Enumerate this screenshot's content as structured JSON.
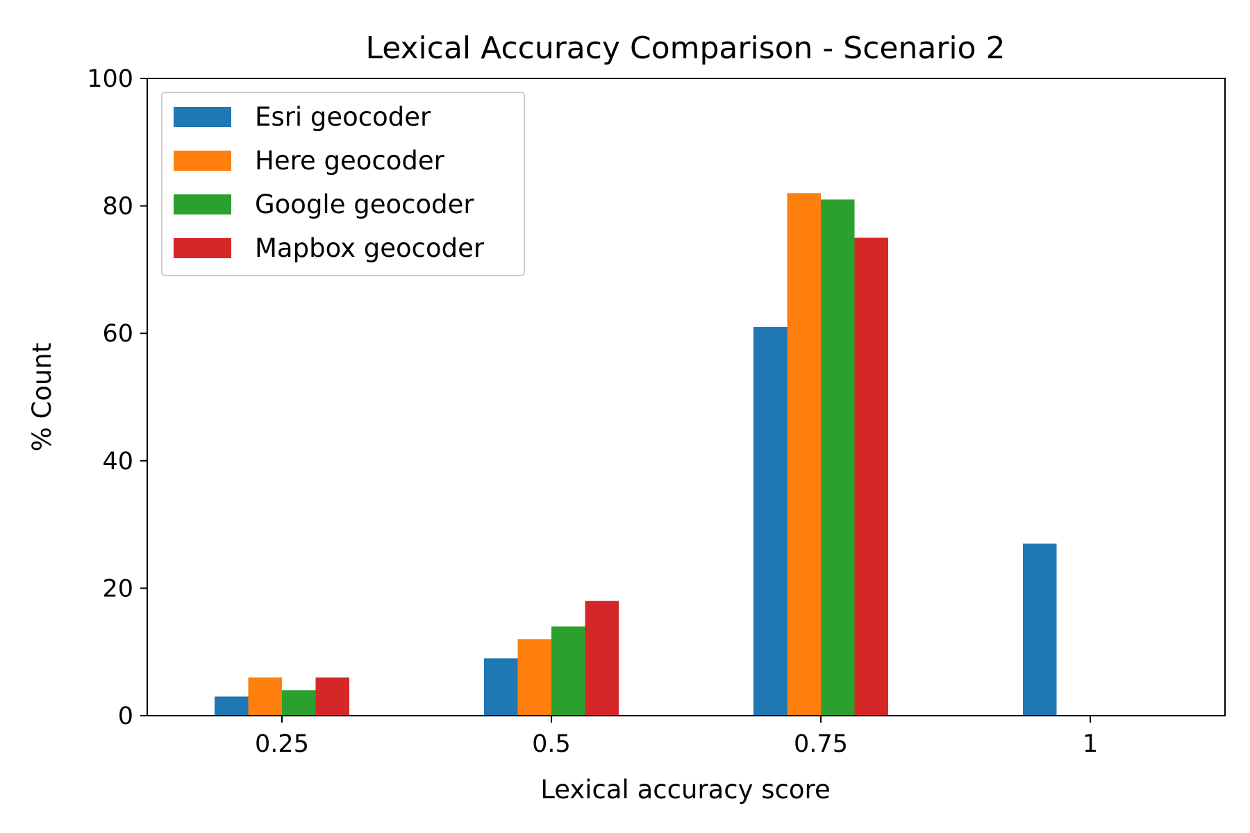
{
  "chart_data": {
    "type": "bar",
    "title": "Lexical Accuracy Comparison - Scenario 2",
    "xlabel": "Lexical accuracy score",
    "ylabel": "% Count",
    "categories": [
      "0.25",
      "0.5",
      "0.75",
      "1"
    ],
    "ylim": [
      0,
      100
    ],
    "yticks": [
      "0",
      "20",
      "40",
      "60",
      "80",
      "100"
    ],
    "grid": false,
    "legend_position": "top-left",
    "series": [
      {
        "name": "Esri geocoder",
        "color": "#1f77b4",
        "values": [
          3,
          9,
          61,
          27
        ]
      },
      {
        "name": "Here geocoder",
        "color": "#ff7f0e",
        "values": [
          6,
          12,
          82,
          0
        ]
      },
      {
        "name": "Google geocoder",
        "color": "#2ca02c",
        "values": [
          4,
          14,
          81,
          0
        ]
      },
      {
        "name": "Mapbox geocoder",
        "color": "#d62728",
        "values": [
          6,
          18,
          75,
          0
        ]
      }
    ]
  }
}
